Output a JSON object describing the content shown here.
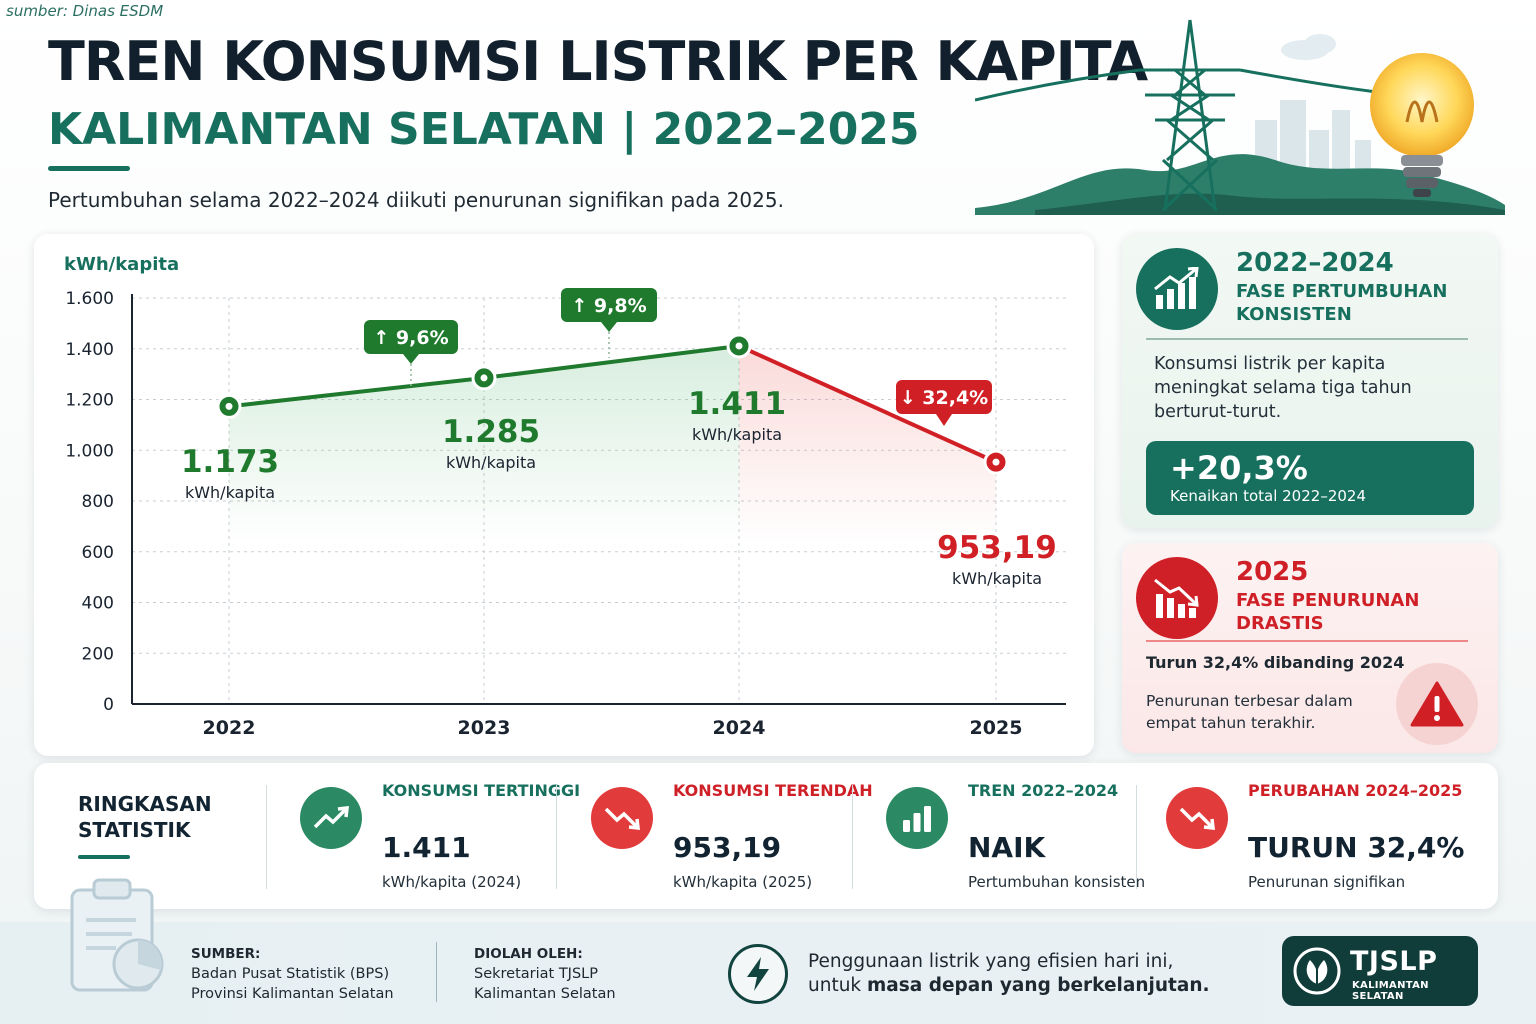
{
  "source_top": "sumber: Dinas ESDM",
  "header": {
    "title": "TREN KONSUMSI LISTRIK PER KAPITA",
    "subtitle": "KALIMANTAN SELATAN | 2022–2025",
    "lead": "Pertumbuhan selama 2022–2024 diikuti penurunan signifikan pada 2025."
  },
  "chart_data": {
    "type": "line",
    "ylabel": "kWh/kapita",
    "categories": [
      "2022",
      "2023",
      "2024",
      "2025"
    ],
    "values": [
      1173,
      1285,
      1411,
      953.19
    ],
    "value_labels": [
      "1.173",
      "1.285",
      "1.411",
      "953,19"
    ],
    "value_unit": "kWh/kapita",
    "ylim": [
      0,
      1600
    ],
    "yticks": [
      0,
      200,
      400,
      600,
      800,
      1000,
      1200,
      1400,
      1600
    ],
    "ytick_labels": [
      "0",
      "200",
      "400",
      "600",
      "800",
      "1.000",
      "1.200",
      "1.400",
      "1.600"
    ],
    "grid": true,
    "changes": [
      {
        "between": [
          "2022",
          "2023"
        ],
        "label": "↑ 9,6%",
        "direction": "up"
      },
      {
        "between": [
          "2023",
          "2024"
        ],
        "label": "↑ 9,8%",
        "direction": "up"
      },
      {
        "between": [
          "2024",
          "2025"
        ],
        "label": "↓ 32,4%",
        "direction": "down"
      }
    ],
    "colors": {
      "growth": "#1f7a2e",
      "decline": "#d11f26",
      "axis": "#1a2430",
      "grid": "#c8cfd4"
    }
  },
  "phase_growth": {
    "year": "2022–2024",
    "label": "FASE PERTUMBUHAN KONSISTEN",
    "description": "Konsumsi listrik per kapita meningkat selama tiga tahun berturut-turut.",
    "box_value": "+20,3%",
    "box_label": "Kenaikan total 2022–2024",
    "icon": "growth-chart-icon",
    "color": "#17705e"
  },
  "phase_decline": {
    "year": "2025",
    "label": "FASE PENURUNAN DRASTIS",
    "lead": "Turun 32,4% dibanding 2024",
    "description": "Penurunan terbesar dalam empat tahun terakhir.",
    "icon": "decline-chart-icon",
    "warning_icon": "warning-icon",
    "color": "#cf1f27"
  },
  "summary": {
    "title": "RINGKASAN STATISTIK",
    "items": [
      {
        "label": "KONSUMSI TERTINGGI",
        "value": "1.411",
        "unit": "kWh/kapita (2024)",
        "tone": "green",
        "icon": "trend-up-icon"
      },
      {
        "label": "KONSUMSI TERENDAH",
        "value": "953,19",
        "unit": "kWh/kapita (2025)",
        "tone": "red",
        "icon": "trend-down-icon"
      },
      {
        "label": "TREN 2022–2024",
        "value": "NAIK",
        "unit": "Pertumbuhan konsisten",
        "tone": "green",
        "icon": "bar-chart-icon"
      },
      {
        "label": "PERUBAHAN 2024–2025",
        "value": "TURUN 32,4%",
        "unit": "Penurunan signifikan",
        "tone": "red",
        "icon": "trend-down-icon"
      }
    ]
  },
  "footer": {
    "source_head": "SUMBER:",
    "source_line1": "Badan Pusat Statistik (BPS)",
    "source_line2": "Provinsi Kalimantan Selatan",
    "processed_head": "DIOLAH OLEH:",
    "processed_line1": "Sekretariat TJSLP",
    "processed_line2": "Kalimantan Selatan",
    "slogan_line1": "Penggunaan listrik yang efisien hari ini,",
    "slogan_line2_prefix": "untuk ",
    "slogan_line2_bold": "masa depan yang berkelanjutan.",
    "logo_name": "TJSLP",
    "logo_sub": "KALIMANTAN SELATAN"
  }
}
